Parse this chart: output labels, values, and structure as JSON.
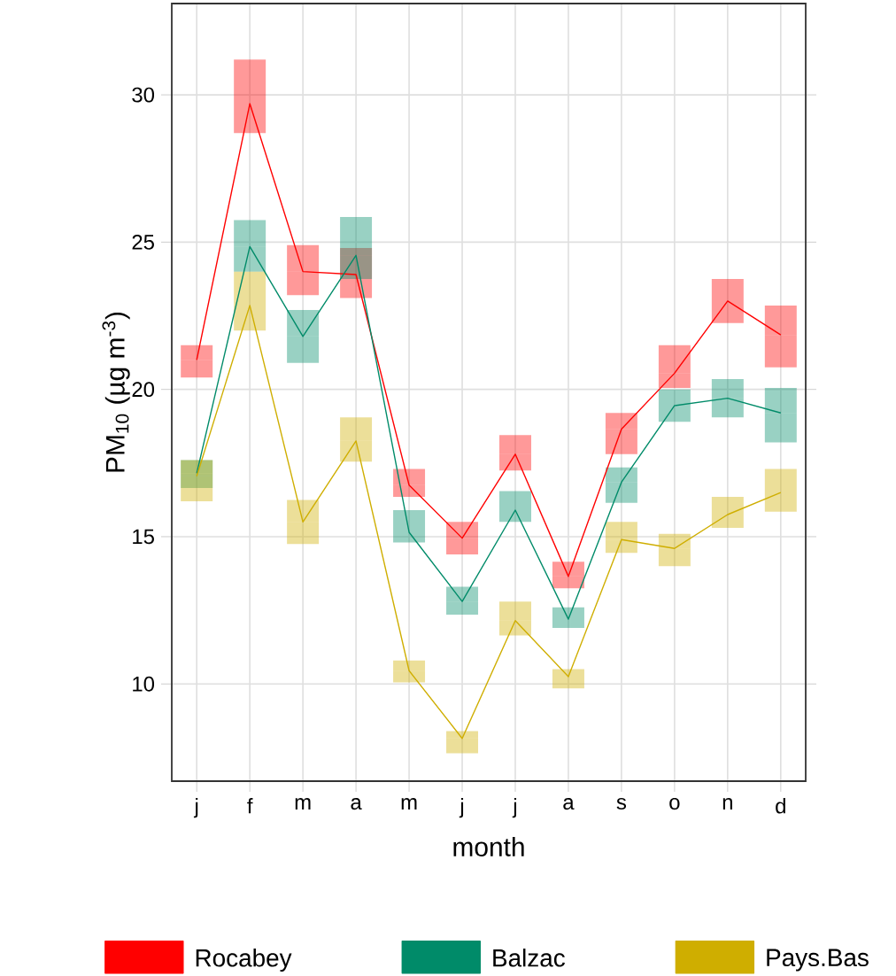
{
  "chart_data": {
    "type": "line",
    "xlabel": "month",
    "ylabel": "PM$_{10}$ (µg m$^{-3}$)",
    "categories": [
      "j",
      "f",
      "m",
      "a",
      "m",
      "j",
      "j",
      "a",
      "s",
      "o",
      "n",
      "d"
    ],
    "ylim": [
      6.7,
      33.1
    ],
    "yticks": [
      10,
      15,
      20,
      25,
      30
    ],
    "grid": true,
    "legend": "bottom",
    "marker": "none",
    "line_style": "solid",
    "series": [
      {
        "name": "Rocabey",
        "color": "#ff0000",
        "values": [
          21.0,
          29.7,
          24.0,
          23.9,
          16.75,
          14.95,
          17.8,
          13.65,
          18.65,
          20.55,
          23.0,
          21.85
        ],
        "errors": [
          [
            20.4,
            21.5
          ],
          [
            28.7,
            31.2
          ],
          [
            23.2,
            24.9
          ],
          [
            23.1,
            24.8
          ],
          [
            16.35,
            17.3
          ],
          [
            14.4,
            15.5
          ],
          [
            17.25,
            18.45
          ],
          [
            13.25,
            14.15
          ],
          [
            17.8,
            19.2
          ],
          [
            20.05,
            21.5
          ],
          [
            22.25,
            23.75
          ],
          [
            20.75,
            22.85
          ]
        ]
      },
      {
        "name": "Balzac",
        "color": "#008b69",
        "values": [
          17.15,
          24.85,
          21.8,
          24.55,
          15.15,
          12.8,
          15.9,
          12.2,
          16.85,
          19.45,
          19.7,
          19.2
        ],
        "errors": [
          [
            16.65,
            17.6
          ],
          [
            24.0,
            25.75
          ],
          [
            20.9,
            22.7
          ],
          [
            23.75,
            25.85
          ],
          [
            14.8,
            15.9
          ],
          [
            12.35,
            13.3
          ],
          [
            15.5,
            16.55
          ],
          [
            11.9,
            12.6
          ],
          [
            16.15,
            17.35
          ],
          [
            18.9,
            20.0
          ],
          [
            19.05,
            20.35
          ],
          [
            18.2,
            20.05
          ]
        ]
      },
      {
        "name": "Pays.Bas",
        "color": "#cfae00",
        "values": [
          17.05,
          22.85,
          15.5,
          18.25,
          10.45,
          8.15,
          12.15,
          10.25,
          14.9,
          14.6,
          15.75,
          16.5
        ],
        "errors": [
          [
            16.2,
            17.6
          ],
          [
            22.0,
            24.0
          ],
          [
            14.75,
            16.25
          ],
          [
            17.55,
            19.05
          ],
          [
            10.05,
            10.8
          ],
          [
            7.65,
            8.4
          ],
          [
            11.65,
            12.8
          ],
          [
            9.85,
            10.5
          ],
          [
            14.45,
            15.5
          ],
          [
            14.0,
            15.1
          ],
          [
            15.3,
            16.35
          ],
          [
            15.85,
            17.3
          ]
        ]
      }
    ]
  }
}
